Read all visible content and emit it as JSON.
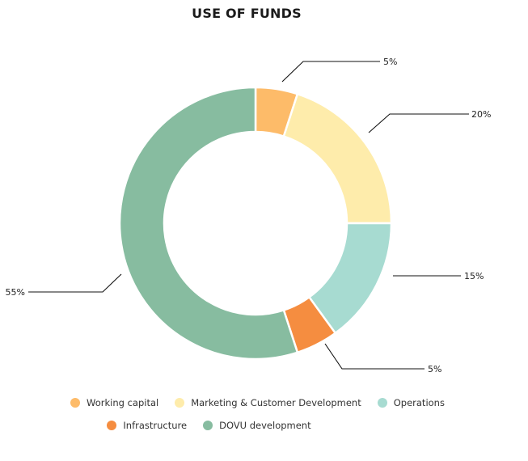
{
  "chart_data": {
    "type": "pie",
    "donut": true,
    "title": "USE OF FUNDS",
    "categories": [
      "Working capital",
      "Marketing & Customer Development",
      "Operations",
      "Infrastructure",
      "DOVU development"
    ],
    "values": [
      5,
      20,
      15,
      5,
      55
    ],
    "value_labels": [
      "5%",
      "20%",
      "15%",
      "5%",
      "55%"
    ],
    "colors": [
      "#FDBB69",
      "#FEECAB",
      "#A7DBD1",
      "#F58D40",
      "#87BCA0"
    ],
    "legend": {
      "placement": "bottom",
      "rows": [
        [
          0,
          1,
          2
        ],
        [
          3,
          4
        ]
      ]
    }
  }
}
